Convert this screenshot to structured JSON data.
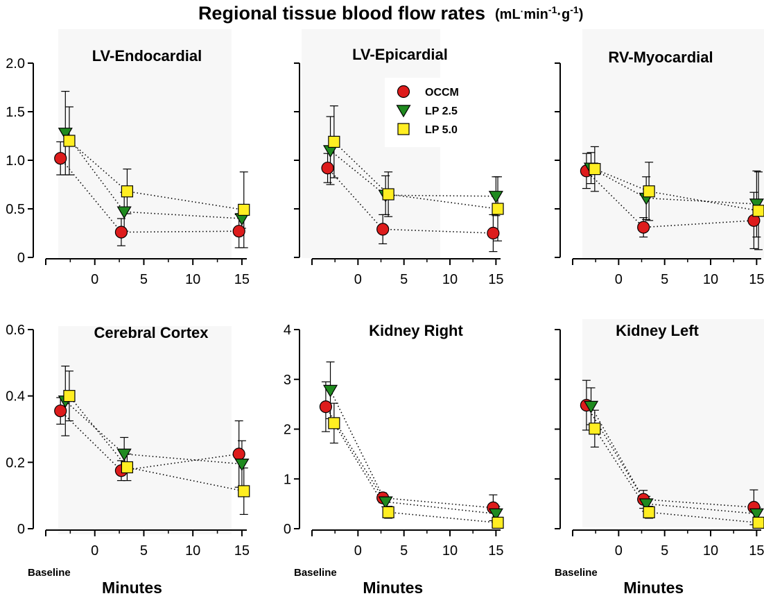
{
  "figure": {
    "title": "Regional tissue blood flow rates",
    "units": {
      "base": "(mL",
      "dot": "·",
      "min": "min",
      "minus1a": "-1",
      "g": "·g",
      "minus1b": "-1",
      "close": ")"
    },
    "xlabel": "Minutes",
    "baseline_label": "Baseline"
  },
  "series_styles": [
    {
      "name": "OCCM",
      "marker": "circle",
      "color": "#dd1c1c"
    },
    {
      "name": "LP 2.5",
      "marker": "triangle-down",
      "color": "#1f8a1f"
    },
    {
      "name": "LP 5.0",
      "marker": "square",
      "color": "#ffee22"
    }
  ],
  "chart_data": [
    {
      "type": "scatter",
      "title": "LV-Endocardial",
      "xlabel": "",
      "ylabel": "",
      "xticks": [
        "0",
        "5",
        "10",
        "15"
      ],
      "xlim": [
        -5,
        15.5
      ],
      "ylim": [
        0,
        2.0
      ],
      "yticks": [
        "0",
        "0.5",
        "1.0",
        "1.5",
        "2.0"
      ],
      "legend": false,
      "series": [
        {
          "name": "OCCM",
          "x": [
            -3.5,
            2.7,
            14.7
          ],
          "y": [
            1.02,
            0.26,
            0.27
          ],
          "err": [
            0.17,
            0.14,
            0.17
          ]
        },
        {
          "name": "LP 2.5",
          "x": [
            -3.0,
            3.0,
            15.0
          ],
          "y": [
            1.28,
            0.47,
            0.4
          ],
          "err": [
            0.43,
            0.2,
            0.1
          ]
        },
        {
          "name": "LP 5.0",
          "x": [
            -2.6,
            3.3,
            15.2
          ],
          "y": [
            1.2,
            0.68,
            0.49
          ],
          "err": [
            0.35,
            0.23,
            0.39
          ]
        }
      ]
    },
    {
      "type": "scatter",
      "title": "LV-Epicardial",
      "xlabel": "",
      "ylabel": "",
      "xticks": [
        "0",
        "5",
        "10",
        "15"
      ],
      "xlim": [
        -5,
        15.5
      ],
      "ylim": [
        0,
        2.0
      ],
      "yticks": [],
      "legend": true,
      "series": [
        {
          "name": "OCCM",
          "x": [
            -3.3,
            2.7,
            14.7
          ],
          "y": [
            0.92,
            0.29,
            0.25
          ],
          "err": [
            0.15,
            0.15,
            0.19
          ]
        },
        {
          "name": "LP 2.5",
          "x": [
            -3.0,
            3.0,
            15.0
          ],
          "y": [
            1.1,
            0.64,
            0.63
          ],
          "err": [
            0.35,
            0.2,
            0.2
          ]
        },
        {
          "name": "LP 5.0",
          "x": [
            -2.6,
            3.3,
            15.2
          ],
          "y": [
            1.19,
            0.65,
            0.5
          ],
          "err": [
            0.37,
            0.23,
            0.33
          ]
        }
      ]
    },
    {
      "type": "scatter",
      "title": "RV-Myocardial",
      "xlabel": "",
      "ylabel": "",
      "xticks": [
        "0",
        "5",
        "10",
        "15"
      ],
      "xlim": [
        -5,
        15.5
      ],
      "ylim": [
        0,
        2.0
      ],
      "yticks": [],
      "legend": false,
      "series": [
        {
          "name": "OCCM",
          "x": [
            -3.5,
            2.7,
            14.7
          ],
          "y": [
            0.89,
            0.31,
            0.38
          ],
          "err": [
            0.18,
            0.1,
            0.29
          ]
        },
        {
          "name": "LP 2.5",
          "x": [
            -3.0,
            3.0,
            15.0
          ],
          "y": [
            0.92,
            0.61,
            0.55
          ],
          "err": [
            0.16,
            0.22,
            0.34
          ]
        },
        {
          "name": "LP 5.0",
          "x": [
            -2.6,
            3.3,
            15.2
          ],
          "y": [
            0.91,
            0.68,
            0.48
          ],
          "err": [
            0.23,
            0.3,
            0.4
          ]
        }
      ]
    },
    {
      "type": "scatter",
      "title": "Cerebral Cortex",
      "xlabel": "Minutes",
      "ylabel": "",
      "xticks": [
        "0",
        "5",
        "10",
        "15"
      ],
      "xlim": [
        -5,
        15.5
      ],
      "ylim": [
        0,
        0.6
      ],
      "yticks": [
        "0",
        "0.2",
        "0.4",
        "0.6"
      ],
      "legend": false,
      "series": [
        {
          "name": "OCCM",
          "x": [
            -3.5,
            2.7,
            14.7
          ],
          "y": [
            0.355,
            0.175,
            0.225
          ],
          "err": [
            0.04,
            0.03,
            0.1
          ]
        },
        {
          "name": "LP 2.5",
          "x": [
            -3.0,
            3.0,
            15.0
          ],
          "y": [
            0.385,
            0.225,
            0.195
          ],
          "err": [
            0.105,
            0.05,
            0.07
          ]
        },
        {
          "name": "LP 5.0",
          "x": [
            -2.6,
            3.3,
            15.2
          ],
          "y": [
            0.4,
            0.185,
            0.113
          ],
          "err": [
            0.075,
            0.04,
            0.07
          ]
        }
      ]
    },
    {
      "type": "scatter",
      "title": "Kidney Right",
      "xlabel": "Minutes",
      "ylabel": "",
      "xticks": [
        "0",
        "5",
        "10",
        "15"
      ],
      "xlim": [
        -5,
        15.5
      ],
      "ylim": [
        0,
        4
      ],
      "yticks": [
        "0",
        "1",
        "2",
        "3",
        "4"
      ],
      "legend": false,
      "series": [
        {
          "name": "OCCM",
          "x": [
            -3.5,
            2.7,
            14.7
          ],
          "y": [
            2.45,
            0.62,
            0.42
          ],
          "err": [
            0.5,
            0.1,
            0.26
          ]
        },
        {
          "name": "LP 2.5",
          "x": [
            -3.0,
            3.0,
            15.0
          ],
          "y": [
            2.78,
            0.54,
            0.3
          ],
          "err": [
            0.57,
            0.1,
            0.15
          ]
        },
        {
          "name": "LP 5.0",
          "x": [
            -2.6,
            3.3,
            15.2
          ],
          "y": [
            2.12,
            0.33,
            0.12
          ],
          "err": [
            0.4,
            0.12,
            0.1
          ]
        }
      ]
    },
    {
      "type": "scatter",
      "title": "Kidney Left",
      "xlabel": "Minutes",
      "ylabel": "",
      "xticks": [
        "0",
        "5",
        "10",
        "15"
      ],
      "xlim": [
        -5,
        15.5
      ],
      "ylim": [
        0,
        4
      ],
      "yticks": [],
      "legend": false,
      "series": [
        {
          "name": "OCCM",
          "x": [
            -3.5,
            2.7,
            14.7
          ],
          "y": [
            2.48,
            0.59,
            0.43
          ],
          "err": [
            0.5,
            0.18,
            0.35
          ]
        },
        {
          "name": "LP 2.5",
          "x": [
            -3.0,
            3.0,
            15.0
          ],
          "y": [
            2.46,
            0.5,
            0.3
          ],
          "err": [
            0.37,
            0.15,
            0.13
          ]
        },
        {
          "name": "LP 5.0",
          "x": [
            -2.6,
            3.3,
            15.2
          ],
          "y": [
            2.01,
            0.33,
            0.12
          ],
          "err": [
            0.37,
            0.12,
            0.1
          ]
        }
      ]
    }
  ]
}
